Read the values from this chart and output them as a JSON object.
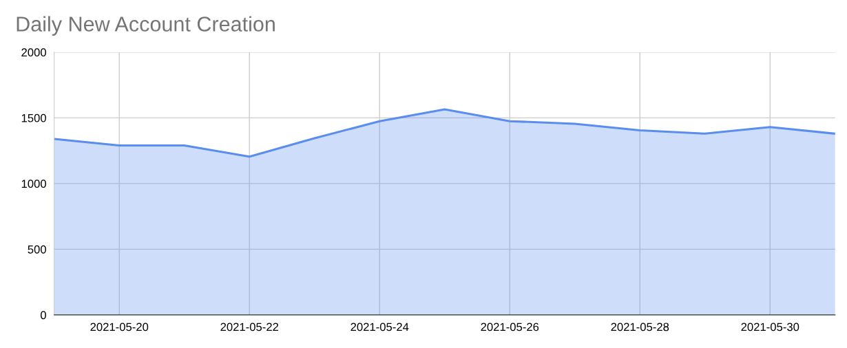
{
  "chart_data": {
    "type": "area",
    "title": "Daily New Account Creation",
    "x": [
      "2021-05-19",
      "2021-05-20",
      "2021-05-21",
      "2021-05-22",
      "2021-05-23",
      "2021-05-24",
      "2021-05-25",
      "2021-05-26",
      "2021-05-27",
      "2021-05-28",
      "2021-05-29",
      "2021-05-30",
      "2021-05-31"
    ],
    "series": [
      {
        "color": "#5b8def",
        "values": [
          1340,
          1290,
          1290,
          1205,
          1345,
          1475,
          1565,
          1475,
          1455,
          1405,
          1380,
          1430,
          1380
        ]
      }
    ],
    "xlim": [
      "2021-05-19",
      "2021-05-31"
    ],
    "xticks": [
      "2021-05-20",
      "2021-05-22",
      "2021-05-24",
      "2021-05-26",
      "2021-05-28",
      "2021-05-30"
    ],
    "ylim": [
      0,
      2000
    ],
    "yticks": [
      0,
      500,
      1000,
      1500,
      2000
    ],
    "grid": true,
    "legend": false,
    "marker": "none",
    "line_style": "solid"
  }
}
